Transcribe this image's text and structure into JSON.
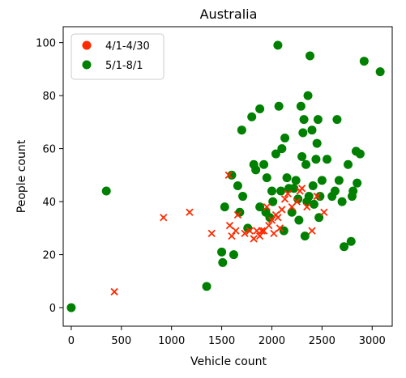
{
  "chart_data": {
    "type": "scatter",
    "title": "Australia",
    "xlabel": "Vehicle count",
    "ylabel": "People count",
    "xlim": [
      -80,
      3200
    ],
    "ylim": [
      -7,
      106
    ],
    "xticks": [
      0,
      500,
      1000,
      1500,
      2000,
      2500,
      3000
    ],
    "yticks": [
      0,
      20,
      40,
      60,
      80,
      100
    ],
    "legend_position": "top-left",
    "series": [
      {
        "name": "4/1-4/30",
        "color": "#ff2a00",
        "marker": "x",
        "legend_marker": "circle",
        "points": [
          [
            430,
            6
          ],
          [
            920,
            34
          ],
          [
            1180,
            36
          ],
          [
            1400,
            28
          ],
          [
            1570,
            50
          ],
          [
            1580,
            31
          ],
          [
            1600,
            27
          ],
          [
            1640,
            29
          ],
          [
            1660,
            35
          ],
          [
            1730,
            28
          ],
          [
            1780,
            29
          ],
          [
            1820,
            26
          ],
          [
            1850,
            29
          ],
          [
            1880,
            27
          ],
          [
            1900,
            29
          ],
          [
            1920,
            29
          ],
          [
            1950,
            38
          ],
          [
            1970,
            31
          ],
          [
            2000,
            33
          ],
          [
            2020,
            28
          ],
          [
            2040,
            35
          ],
          [
            2060,
            34
          ],
          [
            2080,
            30
          ],
          [
            2100,
            37
          ],
          [
            2130,
            41
          ],
          [
            2160,
            43
          ],
          [
            2200,
            38
          ],
          [
            2250,
            40
          ],
          [
            2280,
            44
          ],
          [
            2300,
            45
          ],
          [
            2350,
            38
          ],
          [
            2400,
            29
          ],
          [
            2450,
            42
          ],
          [
            2520,
            36
          ]
        ]
      },
      {
        "name": "5/1-8/1",
        "color": "#008000",
        "marker": "o",
        "legend_marker": "circle",
        "points": [
          [
            0,
            0
          ],
          [
            350,
            44
          ],
          [
            1350,
            8
          ],
          [
            1500,
            21
          ],
          [
            1510,
            17
          ],
          [
            1530,
            38
          ],
          [
            1600,
            50
          ],
          [
            1620,
            20
          ],
          [
            1660,
            46
          ],
          [
            1680,
            36
          ],
          [
            1700,
            67
          ],
          [
            1710,
            42
          ],
          [
            1760,
            30
          ],
          [
            1800,
            72
          ],
          [
            1820,
            54
          ],
          [
            1840,
            52
          ],
          [
            1880,
            75
          ],
          [
            1880,
            38
          ],
          [
            1920,
            54
          ],
          [
            1940,
            36
          ],
          [
            1950,
            49
          ],
          [
            1980,
            34
          ],
          [
            2000,
            44
          ],
          [
            2010,
            40
          ],
          [
            2040,
            58
          ],
          [
            2060,
            99
          ],
          [
            2070,
            76
          ],
          [
            2090,
            44
          ],
          [
            2100,
            60
          ],
          [
            2120,
            29
          ],
          [
            2130,
            64
          ],
          [
            2150,
            49
          ],
          [
            2170,
            45
          ],
          [
            2200,
            36
          ],
          [
            2220,
            45
          ],
          [
            2240,
            48
          ],
          [
            2260,
            41
          ],
          [
            2270,
            33
          ],
          [
            2290,
            76
          ],
          [
            2300,
            57
          ],
          [
            2310,
            66
          ],
          [
            2320,
            71
          ],
          [
            2330,
            27
          ],
          [
            2340,
            54
          ],
          [
            2350,
            40
          ],
          [
            2360,
            80
          ],
          [
            2370,
            42
          ],
          [
            2380,
            95
          ],
          [
            2400,
            67
          ],
          [
            2410,
            46
          ],
          [
            2420,
            39
          ],
          [
            2440,
            56
          ],
          [
            2450,
            62
          ],
          [
            2460,
            71
          ],
          [
            2470,
            34
          ],
          [
            2480,
            42
          ],
          [
            2500,
            48
          ],
          [
            2550,
            56
          ],
          [
            2600,
            42
          ],
          [
            2630,
            44
          ],
          [
            2650,
            71
          ],
          [
            2670,
            48
          ],
          [
            2700,
            40
          ],
          [
            2720,
            23
          ],
          [
            2760,
            54
          ],
          [
            2790,
            25
          ],
          [
            2800,
            42
          ],
          [
            2810,
            44
          ],
          [
            2840,
            59
          ],
          [
            2850,
            47
          ],
          [
            2880,
            58
          ],
          [
            2920,
            93
          ],
          [
            3080,
            89
          ]
        ]
      }
    ]
  }
}
